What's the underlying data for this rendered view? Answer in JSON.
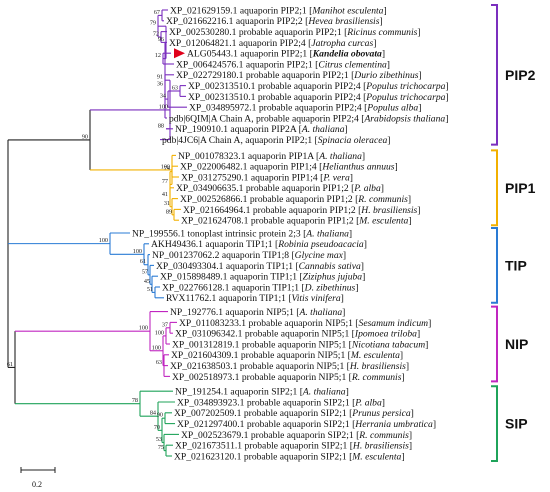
{
  "colors": {
    "PIP2": "#7b2fbe",
    "PIP1": "#f2b000",
    "TIP": "#2a7bd4",
    "NIP": "#c026c0",
    "SIP": "#1fa35a",
    "root": "#222222",
    "marker": "#e0001a"
  },
  "scale_bar": {
    "label": "0.2"
  },
  "groups": [
    {
      "key": "PIP2",
      "label": "PIP2"
    },
    {
      "key": "PIP1",
      "label": "PIP1"
    },
    {
      "key": "TIP",
      "label": "TIP"
    },
    {
      "key": "NIP",
      "label": "NIP"
    },
    {
      "key": "SIP",
      "label": "SIP"
    }
  ],
  "leaves": [
    {
      "id": "XP_021629159.1 aquaporin PIP2;1",
      "sp": "Manihot esculenta"
    },
    {
      "id": "XP_021662216.1 aquaporin PIP2;2",
      "sp": "Hevea brasiliensis"
    },
    {
      "id": "XP_002530280.1 probable aquaporin PIP2;1",
      "sp": "Ricinus communis"
    },
    {
      "id": "XP_012064821.1 aquaporin PIP2;4",
      "sp": "Jatropha curcas"
    },
    {
      "id": "ALG05443.1 aquaporin PIP2;1",
      "sp": "Kandelia obovata",
      "highlight": true
    },
    {
      "id": "XP_006424576.1 aquaporin PIP2;1",
      "sp": "Citrus clementina"
    },
    {
      "id": "XP_022729180.1 probable aquaporin PIP2;1",
      "sp": "Durio zibethinus"
    },
    {
      "id": "XP_002313510.1 probable aquaporin PIP2;4",
      "sp": "Populus trichocarpa"
    },
    {
      "id": "XP_002313510.1 probable aquaporin PIP2;4",
      "sp": "Populus trichocarpa"
    },
    {
      "id": "XP_034895972.1 probable aquaporin PIP2;4",
      "sp": "Populus alba"
    },
    {
      "id": "pdb|6QIM|A Chain A, probable aquaporin PIP2;4",
      "sp": "Arabidopsis thaliana"
    },
    {
      "id": "NP_190910.1 aquaporin PIP2A",
      "sp": "A. thaliana"
    },
    {
      "id": "pdb|4JC6|A Chain A, aquaporin PIP2;1",
      "sp": "Spinacia oleracea"
    },
    {
      "id": "NP_001078323.1 aquaporin PIP1A",
      "sp": "A. thaliana"
    },
    {
      "id": "XP_022006482.1 aquaporin PIP1;4",
      "sp": "Helianthus annuus"
    },
    {
      "id": "XP_031275290.1 aquaporin PIP1;4",
      "sp": "P. vera"
    },
    {
      "id": "XP_034906635.1 probable aquaporin PIP1;2",
      "sp": "P. alba"
    },
    {
      "id": "XP_002526866.1 probable aquaporin PIP1;2",
      "sp": "R. communis"
    },
    {
      "id": "XP_021664964.1 probable aquaporin PIP1;2",
      "sp": "H. brasiliensis"
    },
    {
      "id": "XP_021624708.1 probable aquaporin PIP1;2",
      "sp": "M. esculenta"
    },
    {
      "id": "NP_199556.1 tonoplast intrinsic protein 2;3",
      "sp": "A. thaliana"
    },
    {
      "id": "AKH49436.1 aquaporin TIP1;1",
      "sp": "Robinia pseudoacacia"
    },
    {
      "id": "NP_001237062.2 aquaporin TIP1;8",
      "sp": "Glycine max"
    },
    {
      "id": "XP_030493304.1 aquaporin TIP1;1",
      "sp": "Cannabis sativa"
    },
    {
      "id": "XP_015898489.1 aquaporin TIP1;1",
      "sp": "Ziziphus jujuba"
    },
    {
      "id": "XP_022766128.1 aquaporin TIP1;1",
      "sp": "D. zibethinus"
    },
    {
      "id": "RVX11762.1 aquaporin TIP1;1",
      "sp": "Vitis vinifera"
    },
    {
      "id": "NP_192776.1 aquaporin NIP5;1",
      "sp": "A. thaliana"
    },
    {
      "id": "XP_011083233.1 probable aquaporin NIP5;1",
      "sp": "Sesamum indicum"
    },
    {
      "id": "XP_031096342.1 probable aquaporin NIP5;1",
      "sp": "Ipomoea triloba"
    },
    {
      "id": "XP_001312819.1 probable aquaporin NIP5;1",
      "sp": "Nicotiana tabacum"
    },
    {
      "id": "XP_021604309.1 probable aquaporin NIP5;1",
      "sp": "M. esculenta"
    },
    {
      "id": "XP_021638503.1 probable aquaporin NIP5;1",
      "sp": "H. brasiliensis"
    },
    {
      "id": "XP_002518973.1 probable aquaporin NIP5;1",
      "sp": "R. communis"
    },
    {
      "id": "NP_191254.1 aquaporin SIP2;1",
      "sp": "A. thaliana"
    },
    {
      "id": "XP_034893923.1 probable aquaporin SIP2;1",
      "sp": "P. alba"
    },
    {
      "id": "XP_007202509.1 probable aquaporin SIP2;1",
      "sp": "Prunus persica"
    },
    {
      "id": "XP_021297400.1 probable aquaporin SIP2;1",
      "sp": "Herrania umbratica"
    },
    {
      "id": "XP_002523679.1 probable aquaporin SIP2;1",
      "sp": "R. communis"
    },
    {
      "id": "XP_021673511.1 probable aquaporin SIP2;1",
      "sp": "H. brasiliensis"
    },
    {
      "id": "XP_021623120.1 probable aquaporin SIP2;1",
      "sp": "M. esculenta"
    }
  ],
  "bootstrap_values": [
    "67",
    "72",
    "79",
    "12",
    "96",
    "36",
    "63",
    "34",
    "91",
    "88",
    "100",
    "100",
    "74",
    "77",
    "41",
    "31",
    "89",
    "51",
    "100",
    "90",
    "100",
    "61",
    "57",
    "45",
    "51",
    "57",
    "100",
    "37",
    "100",
    "63",
    "61",
    "53",
    "100",
    "70",
    "90",
    "53",
    "75",
    "84",
    "78"
  ]
}
